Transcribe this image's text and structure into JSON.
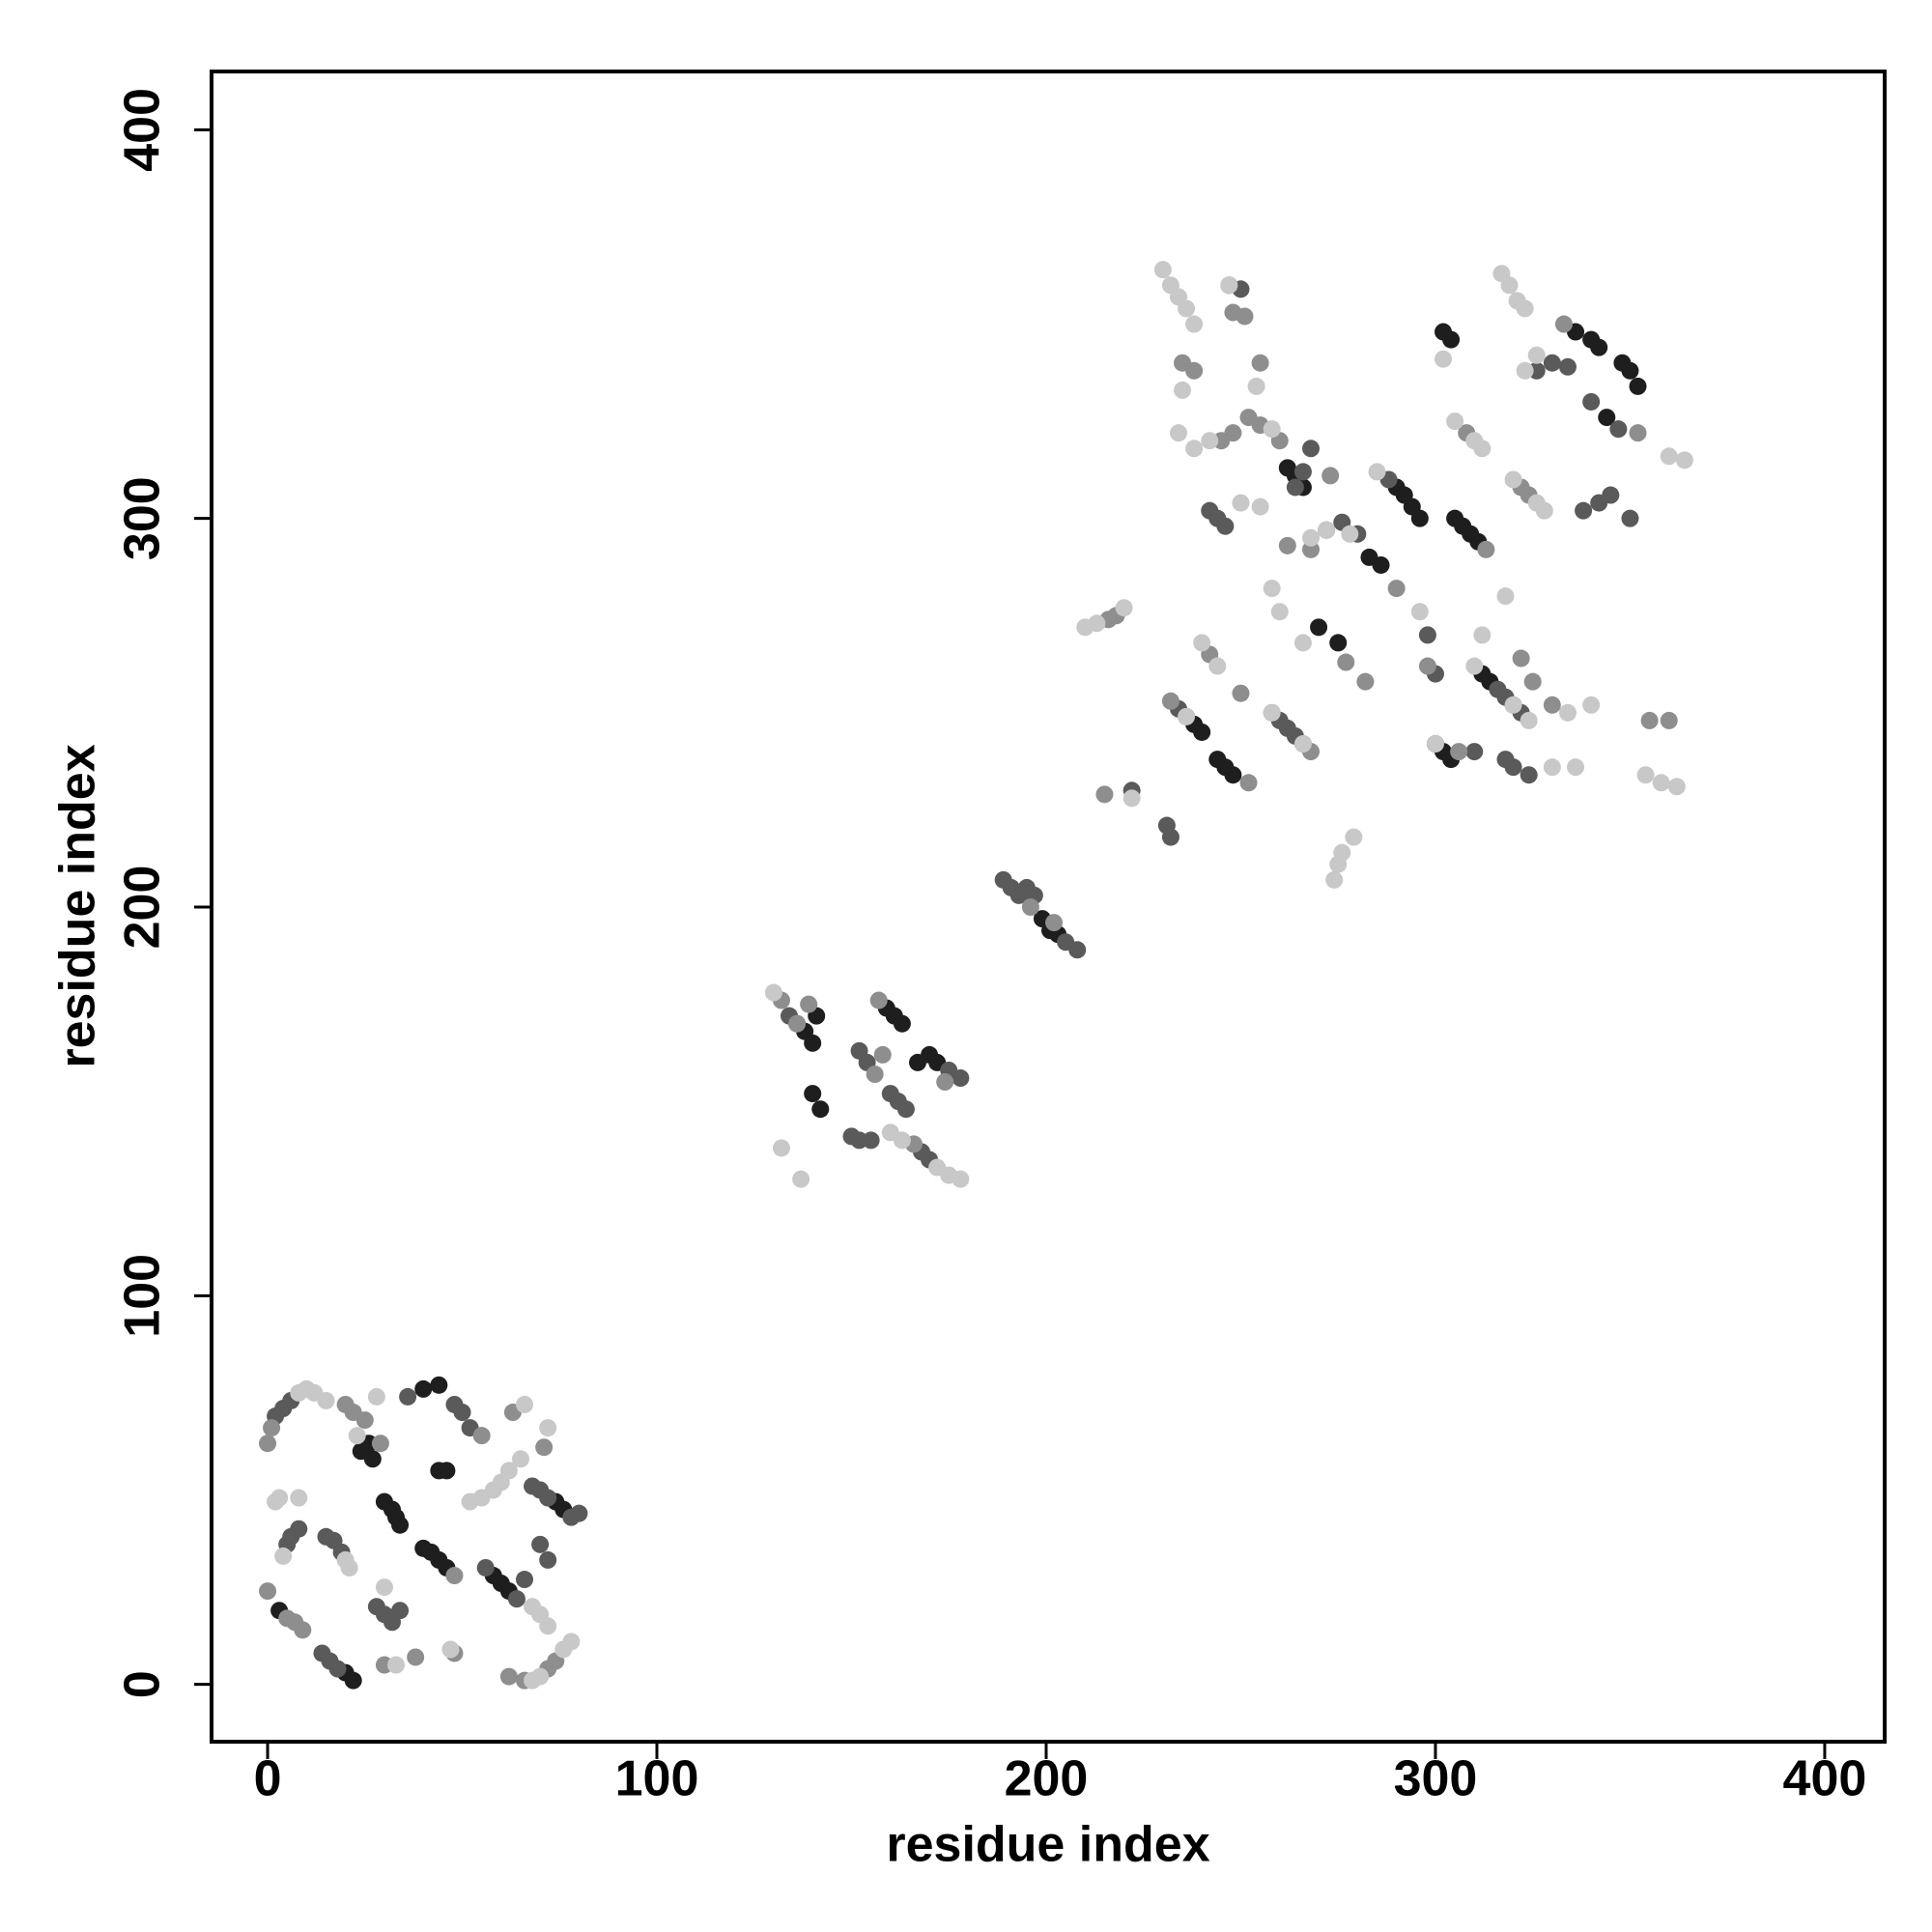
{
  "chart_data": {
    "type": "scatter",
    "x_label": "residue index",
    "y_label": "residue index",
    "xlim": [
      -14.4,
      415.4
    ],
    "ylim": [
      -14.75,
      415
    ],
    "xticks": [
      0,
      100,
      200,
      300,
      400
    ],
    "yticks": [
      0,
      100,
      200,
      300,
      400
    ],
    "grid": false,
    "series": [
      {
        "color": "#1e1e1e",
        "x": [
          24,
          26,
          27,
          30,
          32,
          33,
          34,
          42,
          44,
          46,
          40,
          44,
          46,
          40,
          44,
          58,
          60,
          62,
          74,
          76,
          3,
          20,
          22,
          138,
          140,
          141,
          140,
          142,
          159,
          161,
          163,
          167,
          170,
          172,
          199,
          201,
          203,
          262,
          264,
          266,
          283,
          286,
          290,
          292,
          294,
          296,
          302,
          304,
          305,
          307,
          309,
          311,
          336,
          340,
          342,
          344,
          348,
          350,
          352,
          300,
          302,
          304,
          238,
          240,
          244,
          246,
          248,
          312,
          314,
          270,
          275
        ],
        "values": [
          60,
          62,
          58,
          47,
          45,
          43,
          41,
          34,
          32,
          30,
          35,
          55,
          55,
          76,
          77,
          28,
          26,
          24,
          47,
          45,
          19,
          3,
          1,
          168,
          165,
          172,
          152,
          148,
          174,
          172,
          170,
          160,
          162,
          160,
          197,
          194,
          193,
          313,
          311,
          308,
          290,
          288,
          308,
          306,
          303,
          300,
          348,
          346,
          300,
          298,
          296,
          294,
          348,
          346,
          344,
          326,
          340,
          338,
          334,
          242,
          240,
          238,
          247,
          245,
          238,
          236,
          234,
          260,
          258,
          272,
          268
        ]
      },
      {
        "color": "#5a5a5a",
        "x": [
          2,
          4,
          6,
          5,
          6,
          8,
          15,
          17,
          19,
          28,
          30,
          32,
          34,
          36,
          48,
          50,
          52,
          56,
          64,
          66,
          68,
          70,
          72,
          78,
          80,
          70,
          72,
          14,
          16,
          18,
          134,
          136,
          150,
          152,
          155,
          152,
          154,
          160,
          162,
          164,
          168,
          170,
          175,
          178,
          189,
          191,
          193,
          195,
          197,
          205,
          208,
          222,
          231,
          232,
          234,
          236,
          242,
          244,
          246,
          247,
          250,
          264,
          266,
          268,
          272,
          276,
          280,
          258,
          260,
          262,
          264,
          266,
          288,
          298,
          300,
          310,
          316,
          318,
          320,
          322,
          326,
          330,
          334,
          338,
          342,
          345,
          350,
          318,
          320,
          324,
          340,
          347
        ],
        "values": [
          69,
          71,
          73,
          36,
          38,
          40,
          38,
          37,
          34,
          20,
          18,
          16,
          19,
          74,
          72,
          70,
          66,
          30,
          22,
          27,
          51,
          50,
          48,
          43,
          44,
          36,
          32,
          8,
          6,
          4,
          172,
          170,
          141,
          140,
          140,
          163,
          160,
          152,
          150,
          148,
          137,
          135,
          158,
          156,
          207,
          205,
          203,
          205,
          203,
          191,
          189,
          230,
          221,
          218,
          251,
          249,
          302,
          300,
          298,
          360,
          359,
          308,
          312,
          318,
          297,
          299,
          296,
          250,
          248,
          246,
          244,
          242,
          310,
          270,
          260,
          240,
          256,
          254,
          252,
          250,
          338,
          340,
          339,
          302,
          304,
          306,
          300,
          238,
          236,
          234,
          330,
          323
        ]
      },
      {
        "color": "#8e8e8e",
        "x": [
          0,
          1,
          0,
          5,
          7,
          9,
          20,
          22,
          29,
          25,
          48,
          48,
          55,
          30,
          38,
          62,
          72,
          74,
          66,
          63,
          71,
          132,
          136,
          139,
          156,
          158,
          157,
          166,
          174,
          196,
          202,
          215,
          216,
          218,
          235,
          238,
          248,
          251,
          255,
          245,
          248,
          252,
          255,
          260,
          268,
          282,
          242,
          250,
          232,
          252,
          268,
          262,
          277,
          298,
          306,
          308,
          322,
          324,
          333,
          352,
          355,
          360,
          330,
          322,
          325,
          313,
          290,
          273
        ],
        "values": [
          62,
          66,
          24,
          17,
          16,
          14,
          72,
          70,
          62,
          68,
          28,
          8,
          64,
          5,
          7,
          2,
          4,
          6,
          1,
          70,
          61,
          176,
          170,
          175,
          157,
          162,
          176,
          139,
          155,
          200,
          196,
          229,
          274,
          275,
          340,
          338,
          353,
          352,
          340,
          320,
          322,
          326,
          324,
          320,
          292,
          258,
          265,
          255,
          253,
          232,
          240,
          293,
          263,
          262,
          240,
          322,
          308,
          306,
          350,
          322,
          248,
          248,
          252,
          264,
          258,
          292,
          282,
          311
        ]
      },
      {
        "color": "#c8c8c8",
        "x": [
          2,
          3,
          8,
          4,
          8,
          10,
          12,
          20,
          21,
          23,
          15,
          28,
          30,
          33,
          47,
          52,
          55,
          58,
          60,
          62,
          65,
          66,
          72,
          68,
          70,
          72,
          76,
          78,
          68,
          70,
          130,
          132,
          137,
          160,
          163,
          172,
          175,
          178,
          210,
          213,
          220,
          222,
          274,
          275,
          276,
          279,
          230,
          232,
          234,
          236,
          238,
          235,
          247,
          254,
          234,
          238,
          242,
          250,
          255,
          258,
          258,
          260,
          268,
          272,
          278,
          266,
          240,
          244,
          258,
          266,
          236,
          285,
          296,
          300,
          310,
          312,
          318,
          302,
          305,
          310,
          312,
          317,
          319,
          321,
          323,
          320,
          326,
          328,
          323,
          326,
          364,
          360,
          330,
          336,
          354,
          358,
          362,
          334,
          340,
          320,
          324
        ],
        "values": [
          47,
          48,
          48,
          33,
          75,
          76,
          75,
          32,
          30,
          64,
          73,
          74,
          25,
          5,
          9,
          47,
          48,
          50,
          52,
          55,
          58,
          72,
          66,
          20,
          18,
          15,
          9,
          11,
          1,
          2,
          178,
          138,
          130,
          142,
          140,
          133,
          131,
          130,
          272,
          273,
          277,
          228,
          207,
          211,
          214,
          218,
          364,
          360,
          357,
          354,
          350,
          333,
          360,
          334,
          322,
          318,
          320,
          304,
          303,
          323,
          282,
          276,
          295,
          297,
          296,
          268,
          268,
          262,
          250,
          242,
          249,
          312,
          276,
          242,
          262,
          270,
          280,
          341,
          325,
          320,
          318,
          363,
          360,
          356,
          354,
          310,
          304,
          302,
          338,
          342,
          315,
          316,
          236,
          236,
          234,
          232,
          231,
          250,
          252,
          252,
          248
        ]
      }
    ]
  }
}
